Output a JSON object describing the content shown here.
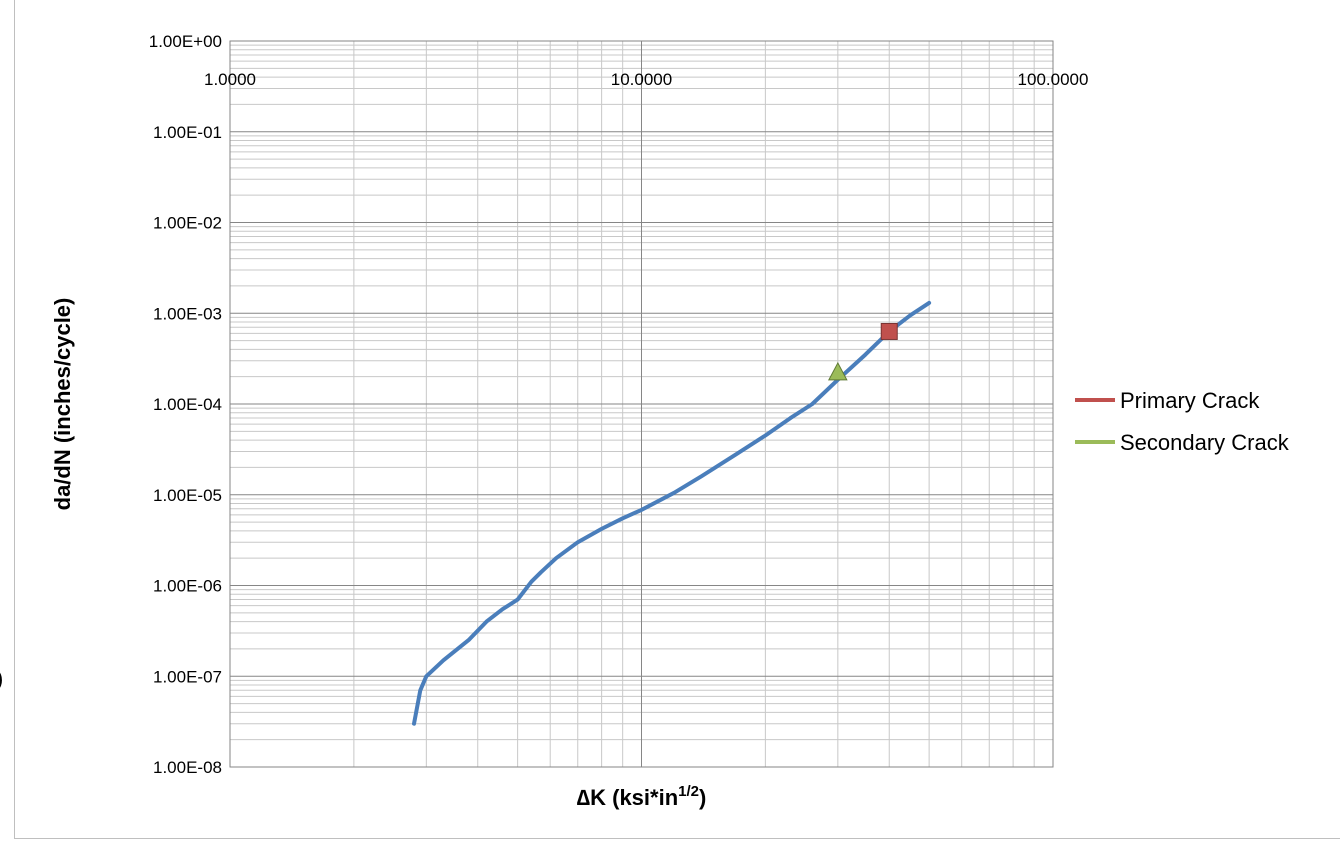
{
  "chart_data": {
    "type": "line",
    "title": "",
    "xlabel": {
      "prefix": "∆K (ksi*in",
      "superscript": "1/2",
      "suffix": ")"
    },
    "ylabel": "da/dN (inches/cycle)",
    "x_scale": "log",
    "y_scale": "log",
    "xlim": [
      1,
      100
    ],
    "ylim": [
      1e-08,
      1
    ],
    "x_tick_values": [
      1,
      10,
      100
    ],
    "x_tick_labels": [
      "1.0000",
      "10.0000",
      "100.0000"
    ],
    "y_tick_values": [
      1,
      0.1,
      0.01,
      0.001,
      0.0001,
      1e-05,
      1e-06,
      1e-07,
      1e-08
    ],
    "y_tick_labels": [
      "1.00E+00",
      "1.00E-01",
      "1.00E-02",
      "1.00E-03",
      "1.00E-04",
      "1.00E-05",
      "1.00E-06",
      "1.00E-07",
      "1.00E-08"
    ],
    "grid": true,
    "legend_position": "right",
    "curve": {
      "color": "#4a7ebb",
      "x": [
        2.8,
        2.9,
        3.0,
        3.3,
        3.8,
        4.2,
        4.6,
        5.0,
        5.4,
        5.7,
        6.2,
        7.0,
        8.0,
        9.0,
        10.0,
        12.0,
        14.0,
        17.0,
        20.0,
        23.0,
        26.0,
        30.0,
        35.0,
        40.0,
        45.0,
        50.0
      ],
      "y": [
        3e-08,
        7e-08,
        1e-07,
        1.5e-07,
        2.5e-07,
        4e-07,
        5.5e-07,
        7e-07,
        1.1e-06,
        1.4e-06,
        2e-06,
        3e-06,
        4.2e-06,
        5.5e-06,
        6.8e-06,
        1.05e-05,
        1.6e-05,
        2.8e-05,
        4.5e-05,
        7e-05,
        0.0001,
        0.000185,
        0.00035,
        0.00063,
        0.00095,
        0.0013
      ]
    },
    "series": [
      {
        "name": "Primary Crack",
        "color": "#c0504d",
        "marker": "square",
        "x": [
          40
        ],
        "y": [
          0.00063
        ]
      },
      {
        "name": "Secondary Crack",
        "color": "#9bbb59",
        "marker": "triangle",
        "x": [
          30
        ],
        "y": [
          0.00022
        ]
      }
    ],
    "edge_glyph": ")"
  }
}
